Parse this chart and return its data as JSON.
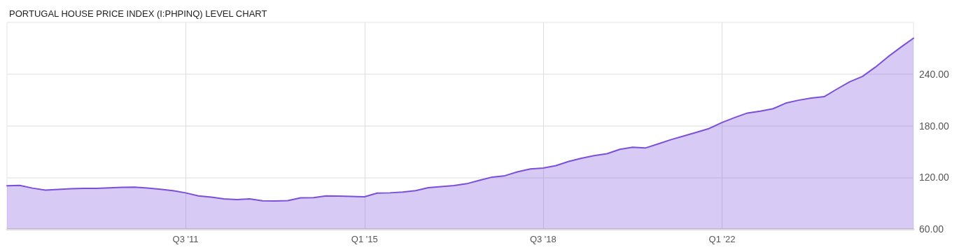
{
  "chart_data": {
    "type": "area",
    "title": "PORTUGAL HOUSE PRICE INDEX (I:PHPINQ) LEVEL CHART",
    "x": [
      "2008-01",
      "2008-04",
      "2008-07",
      "2008-10",
      "2009-01",
      "2009-04",
      "2009-07",
      "2009-10",
      "2010-01",
      "2010-04",
      "2010-07",
      "2010-10",
      "2011-01",
      "2011-04",
      "2011-07",
      "2011-10",
      "2012-01",
      "2012-04",
      "2012-07",
      "2012-10",
      "2013-01",
      "2013-04",
      "2013-07",
      "2013-10",
      "2014-01",
      "2014-04",
      "2014-07",
      "2014-10",
      "2015-01",
      "2015-04",
      "2015-07",
      "2015-10",
      "2016-01",
      "2016-04",
      "2016-07",
      "2016-10",
      "2017-01",
      "2017-04",
      "2017-07",
      "2017-10",
      "2018-01",
      "2018-04",
      "2018-07",
      "2018-10",
      "2019-01",
      "2019-04",
      "2019-07",
      "2019-10",
      "2020-01",
      "2020-04",
      "2020-07",
      "2020-10",
      "2021-01",
      "2021-04",
      "2021-07",
      "2021-10",
      "2022-01",
      "2022-04",
      "2022-07",
      "2022-10",
      "2023-01",
      "2023-04",
      "2023-07",
      "2023-10",
      "2024-01",
      "2024-04",
      "2024-07",
      "2024-10",
      "2025-01",
      "2025-04",
      "2025-07",
      "2025-10"
    ],
    "series": [
      {
        "color": "#7b4fd9",
        "values": [
          110.2,
          110.7,
          107.5,
          105.2,
          106.0,
          106.8,
          107.2,
          107.2,
          107.8,
          108.5,
          108.7,
          107.5,
          106.1,
          104.5,
          102.0,
          98.4,
          97.0,
          95.0,
          94.2,
          95.0,
          92.7,
          92.6,
          93.0,
          96.2,
          96.5,
          98.4,
          98.2,
          97.8,
          97.4,
          101.7,
          102.0,
          103.0,
          104.5,
          108.0,
          109.3,
          110.5,
          112.6,
          116.5,
          120.3,
          121.9,
          126.5,
          129.7,
          130.8,
          133.6,
          138.5,
          142.2,
          145.3,
          147.5,
          152.6,
          154.9,
          154.1,
          158.9,
          163.8,
          168.0,
          172.3,
          176.8,
          183.8,
          189.5,
          194.7,
          196.9,
          199.7,
          206.2,
          209.6,
          212.2,
          213.7,
          222.5,
          231.0,
          237.3,
          248.0,
          260.0,
          271.0,
          281.7
        ]
      }
    ],
    "xlim": [
      "2008-01",
      "2025-10"
    ],
    "xticks": [
      {
        "value": "2011-07",
        "label": "Q3 '11"
      },
      {
        "value": "2015-01",
        "label": "Q1 '15"
      },
      {
        "value": "2018-07",
        "label": "Q3 '18"
      },
      {
        "value": "2022-01",
        "label": "Q1 '22"
      }
    ],
    "ylim": [
      60,
      300
    ],
    "yticks": [
      {
        "value": 60,
        "label": "60.00"
      },
      {
        "value": 120,
        "label": "120.00"
      },
      {
        "value": 180,
        "label": "180.00"
      },
      {
        "value": 240,
        "label": "240.00"
      }
    ],
    "grid": true,
    "marker": "none",
    "line_style": "solid"
  }
}
